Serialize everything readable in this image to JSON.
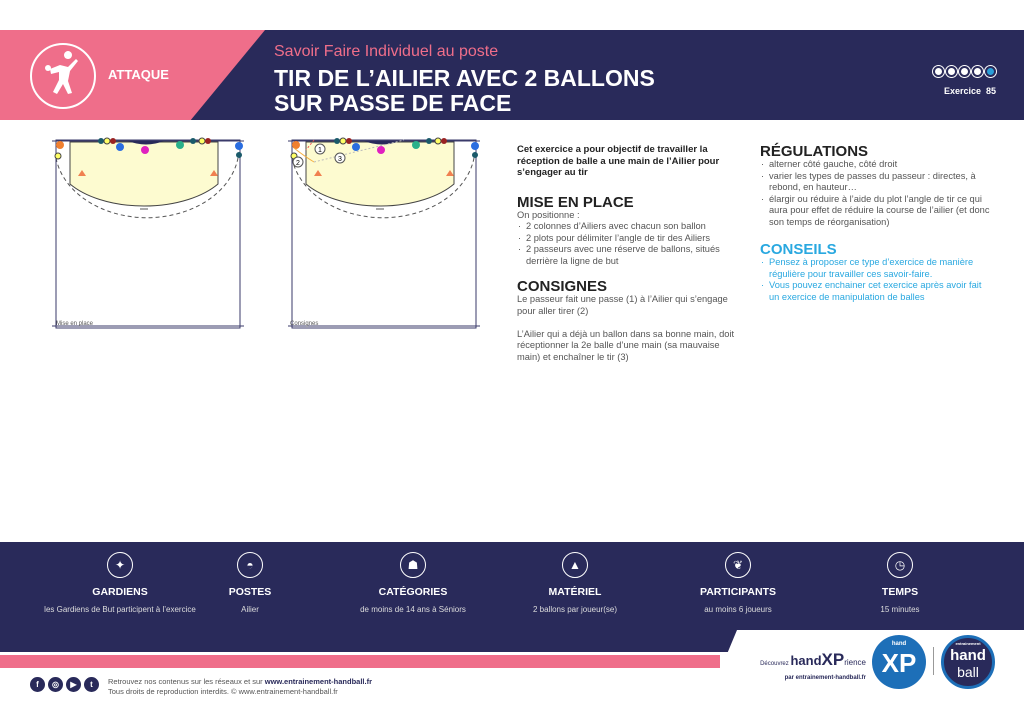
{
  "header": {
    "category": "ATTAQUE",
    "subtitle": "Savoir Faire Individuel au poste",
    "title_line1": "TIR DE L’AILIER AVEC 2 BALLONS",
    "title_line2": "SUR PASSE DE FACE",
    "difficulty": {
      "filled": 4,
      "total": 5
    },
    "exercise": "Exercice  85"
  },
  "diagrams": [
    {
      "caption": "Mise en place"
    },
    {
      "caption": "Consignes",
      "labels": [
        "1",
        "2",
        "3"
      ]
    }
  ],
  "intro": "Cet exercice a pour objectif de travailler la réception de balle a une main de l’Ailier pour s’engager au tir",
  "mise_en_place": {
    "heading": "MISE EN PLACE",
    "lead": "On positionne :",
    "items": [
      "2 colonnes d’Ailiers avec chacun son ballon",
      "2 plots pour délimiter l’angle de tir des Ailiers",
      "2 passeurs avec une réserve de ballons, situés derrière la ligne de but"
    ]
  },
  "consignes": {
    "heading": "CONSIGNES",
    "p1": "Le passeur fait une passe (1) à l’Ailier qui s’engage pour aller tirer (2)",
    "p2": "L’Ailier qui a déjà un ballon dans sa bonne main, doit réceptionner la 2e balle d’une main (sa mauvaise main) et enchaîner le tir (3)"
  },
  "regulations": {
    "heading": "RÉGULATIONS",
    "items": [
      "alterner côté gauche, côté droit",
      "varier les types de passes du passeur : directes, à rebond, en hauteur…",
      "élargir ou réduire à l’aide du plot l’angle de tir ce qui aura pour effet de réduire la course de l’ailier (et donc son temps de réorganisation)"
    ]
  },
  "conseils": {
    "heading": "CONSEILS",
    "items": [
      "Pensez à proposer ce type d’exercice de manière régulière pour travailler ces savoir-faire.",
      "Vous pouvez enchainer cet exercice après avoir fait un exercice de manipulation de balles"
    ]
  },
  "features": [
    {
      "icon": "goalkeeper-icon",
      "title": "GARDIENS",
      "value": "les Gardiens de But participent à l’exercice"
    },
    {
      "icon": "court-icon",
      "title": "POSTES",
      "value": "Ailier"
    },
    {
      "icon": "group-icon",
      "title": "CATÉGORIES",
      "value": "de moins de 14 ans à Séniors"
    },
    {
      "icon": "cone-icon",
      "title": "MATÉRIEL",
      "value": "2 ballons par joueur(se)"
    },
    {
      "icon": "players-icon",
      "title": "PARTICIPANTS",
      "value": "au moins 6 joueurs"
    },
    {
      "icon": "clock-icon",
      "title": "TEMPS",
      "value": "15 minutes"
    }
  ],
  "footer": {
    "line1_prefix": "Retrouvez nos contenus sur les réseaux et sur ",
    "line1_link": "www.entrainement-handball.fr",
    "line2": "Tous droits de reproduction interdits. © www.entrainement-handball.fr",
    "discover": "Découvrez",
    "hand": "hand",
    "xp": "XP",
    "rience": "rience",
    "par": "par entrainement-handball.fr",
    "logo_xp_small": "hand",
    "logo_xp": "XP",
    "logo_eh_top": "entrainement",
    "logo_eh1": "hand",
    "logo_eh2": "ball"
  },
  "colors": {
    "navy": "#292a5a",
    "pink": "#ef6e8a",
    "blue": "#29a8e0",
    "zone": "#fdfbd0"
  }
}
